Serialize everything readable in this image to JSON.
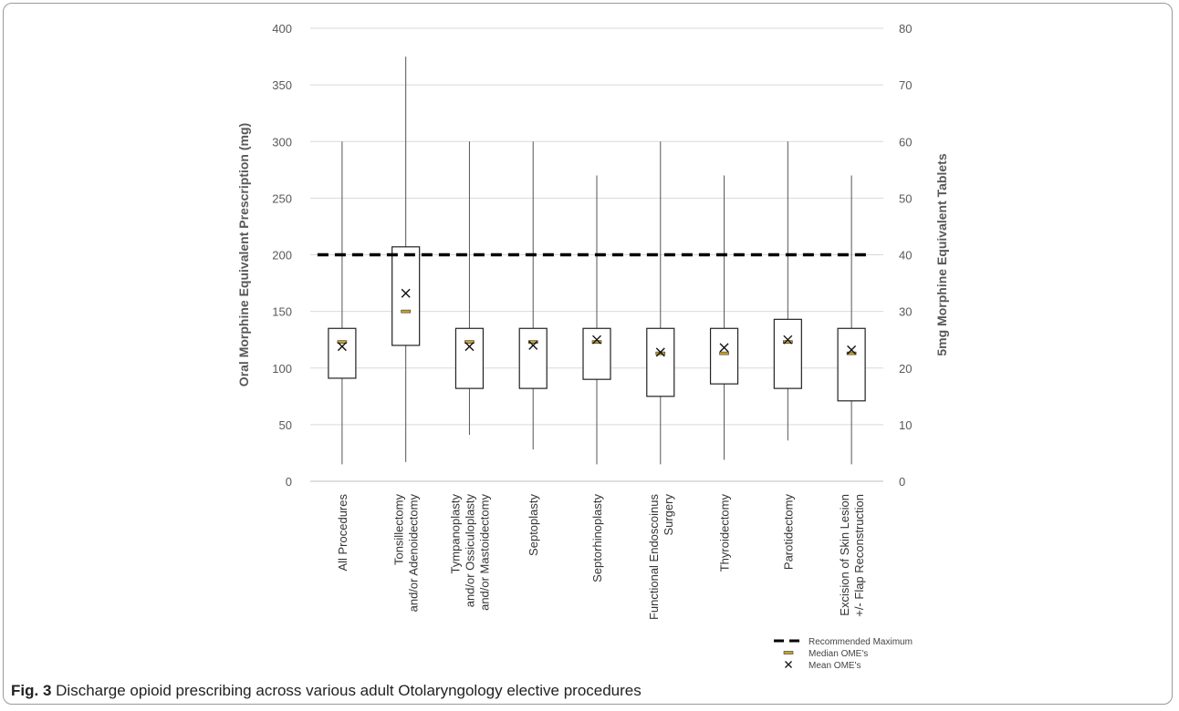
{
  "caption": {
    "label": "Fig. 3",
    "text": "Discharge opioid prescribing across various adult Otolaryngology elective procedures"
  },
  "chart_data": {
    "type": "boxplot",
    "ylabel": "Oral Morphine Equivalent Prescription (mg)",
    "ylabel_right": "5mg Morphine Equivalent Tablets",
    "ylim": [
      0,
      400
    ],
    "ylim_right": [
      0,
      80
    ],
    "yticks": [
      0,
      50,
      100,
      150,
      200,
      250,
      300,
      350,
      400
    ],
    "yticks_right": [
      0,
      10,
      20,
      30,
      40,
      50,
      60,
      70,
      80
    ],
    "grid": true,
    "categories": [
      [
        "All Procedures"
      ],
      [
        "Tonsillectomy",
        "and/or Adenoidectomy"
      ],
      [
        "Tympanoplasty",
        "and/or Ossiculoplasty",
        "and/or Mastoidectomy"
      ],
      [
        "Septoplasty"
      ],
      [
        "Septorhinoplasty"
      ],
      [
        "Functional Endoscoinus",
        "Surgery"
      ],
      [
        "Thyroidectomy"
      ],
      [
        "Parotidectomy"
      ],
      [
        "Excision of Skin Lesion",
        "+/- Flap Reconstruction"
      ]
    ],
    "boxes": [
      {
        "min": 15,
        "q1": 91,
        "median": 123,
        "q3": 135,
        "max": 300,
        "mean": 119
      },
      {
        "min": 17,
        "q1": 120,
        "median": 150,
        "q3": 207,
        "max": 375,
        "mean": 166
      },
      {
        "min": 41,
        "q1": 82,
        "median": 123,
        "q3": 135,
        "max": 300,
        "mean": 119
      },
      {
        "min": 28,
        "q1": 82,
        "median": 123,
        "q3": 135,
        "max": 300,
        "mean": 120
      },
      {
        "min": 15,
        "q1": 90,
        "median": 123,
        "q3": 135,
        "max": 270,
        "mean": 125
      },
      {
        "min": 15,
        "q1": 75,
        "median": 113,
        "q3": 135,
        "max": 300,
        "mean": 114
      },
      {
        "min": 19,
        "q1": 86,
        "median": 113,
        "q3": 135,
        "max": 270,
        "mean": 118
      },
      {
        "min": 36,
        "q1": 82,
        "median": 123,
        "q3": 143,
        "max": 300,
        "mean": 125
      },
      {
        "min": 15,
        "q1": 71,
        "median": 113,
        "q3": 135,
        "max": 270,
        "mean": 116
      }
    ],
    "reference_line": {
      "value": 200
    },
    "legend": {
      "placement": "bottom-right",
      "items": [
        {
          "symbol": "dash-line",
          "label": "Recommended Maximum"
        },
        {
          "symbol": "median-bar",
          "label": "Median OME's"
        },
        {
          "symbol": "x-mark",
          "label": "Mean OME's"
        }
      ]
    },
    "colors": {
      "median": "#c9a227",
      "box": "#222222",
      "grid": "#d9d9d9",
      "axis_text": "#595959"
    }
  }
}
